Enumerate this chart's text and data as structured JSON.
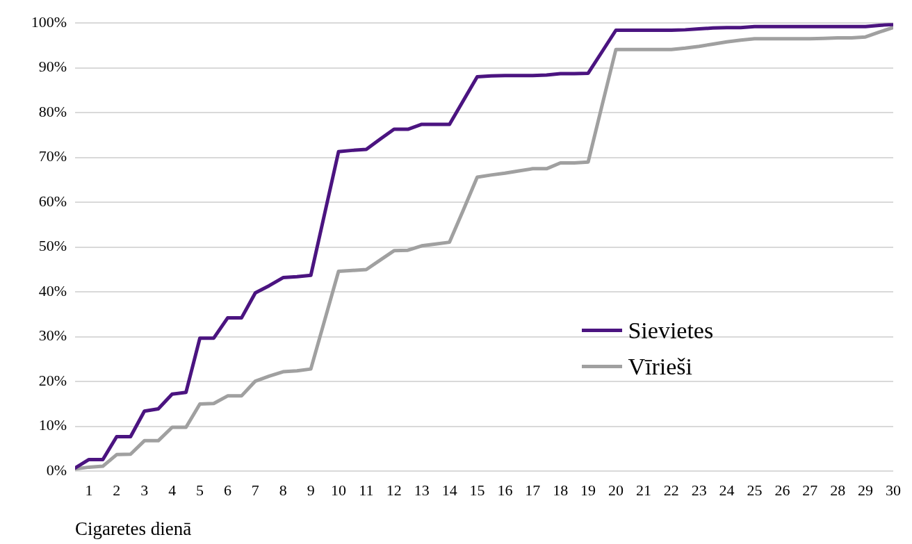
{
  "chart_data": {
    "type": "line",
    "xlabel": "Cigaretes dienā",
    "x": [
      0.5,
      1,
      1.5,
      2,
      2.5,
      3,
      3.5,
      4,
      4.5,
      5,
      5.5,
      6,
      6.5,
      7,
      7.5,
      8,
      8.5,
      9,
      9.5,
      10,
      10.5,
      11,
      11.5,
      12,
      12.5,
      13,
      13.5,
      14,
      14.5,
      15,
      15.5,
      16,
      16.5,
      17,
      17.5,
      18,
      18.5,
      19,
      19.5,
      20,
      20.5,
      21,
      21.5,
      22,
      22.5,
      23,
      23.5,
      24,
      24.5,
      25,
      25.5,
      26,
      26.5,
      27,
      27.5,
      28,
      28.5,
      29,
      29.5,
      30
    ],
    "xlim": [
      0.5,
      30
    ],
    "xticks": [
      1,
      2,
      3,
      4,
      5,
      6,
      7,
      8,
      9,
      10,
      11,
      12,
      13,
      14,
      15,
      16,
      17,
      18,
      19,
      20,
      21,
      22,
      23,
      24,
      25,
      26,
      27,
      28,
      29,
      30
    ],
    "series": [
      {
        "name": "Sievietes",
        "color": "#4b1480",
        "values": [
          0.7,
          2.6,
          2.6,
          7.7,
          7.7,
          13.4,
          13.9,
          17.2,
          17.6,
          29.7,
          29.7,
          34.2,
          34.2,
          39.8,
          41.4,
          43.2,
          43.4,
          43.7,
          57.5,
          71.3,
          71.6,
          71.8,
          74.1,
          76.3,
          76.3,
          77.4,
          77.4,
          77.4,
          82.7,
          88.0,
          88.2,
          88.3,
          88.3,
          88.3,
          88.4,
          88.7,
          88.7,
          88.8,
          93.6,
          98.4,
          98.4,
          98.4,
          98.4,
          98.4,
          98.5,
          98.7,
          98.9,
          99.0,
          99.0,
          99.2,
          99.2,
          99.2,
          99.2,
          99.2,
          99.2,
          99.2,
          99.2,
          99.2,
          99.5,
          99.7
        ]
      },
      {
        "name": "Vīrieši",
        "color": "#a0a0a0",
        "values": [
          0.5,
          0.9,
          1.1,
          3.7,
          3.8,
          6.8,
          6.8,
          9.8,
          9.8,
          15.0,
          15.1,
          16.8,
          16.8,
          20.1,
          21.2,
          22.2,
          22.4,
          22.8,
          33.7,
          44.6,
          44.8,
          45.0,
          47.1,
          49.2,
          49.3,
          50.3,
          50.7,
          51.1,
          58.3,
          65.6,
          66.1,
          66.5,
          67.0,
          67.5,
          67.5,
          68.8,
          68.8,
          69.0,
          81.6,
          94.1,
          94.1,
          94.1,
          94.1,
          94.1,
          94.4,
          94.8,
          95.3,
          95.8,
          96.2,
          96.5,
          96.5,
          96.5,
          96.5,
          96.5,
          96.6,
          96.7,
          96.7,
          96.9,
          98.0,
          99.0
        ]
      }
    ],
    "ylim": [
      0,
      100
    ],
    "yticks": [
      {
        "value": 0,
        "label": "0%"
      },
      {
        "value": 10,
        "label": "10%"
      },
      {
        "value": 20,
        "label": "20%"
      },
      {
        "value": 30,
        "label": "30%"
      },
      {
        "value": 40,
        "label": "40%"
      },
      {
        "value": 50,
        "label": "50%"
      },
      {
        "value": 60,
        "label": "60%"
      },
      {
        "value": 70,
        "label": "70%"
      },
      {
        "value": 80,
        "label": "80%"
      },
      {
        "value": 90,
        "label": "90%"
      },
      {
        "value": 100,
        "label": "100%"
      }
    ],
    "grid": "y",
    "legend": "right",
    "marker": "none",
    "line_style": "solid"
  }
}
